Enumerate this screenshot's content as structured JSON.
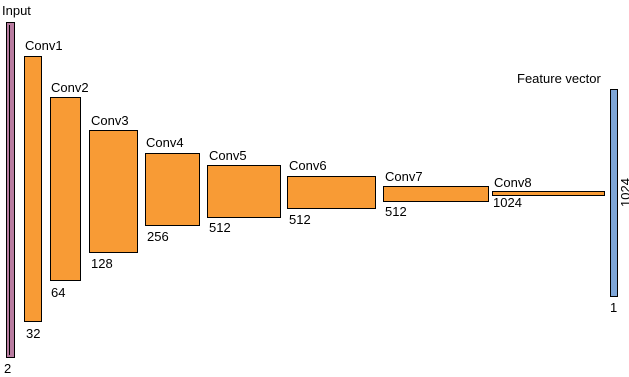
{
  "input": {
    "name": "Input",
    "dim": "2"
  },
  "layers": [
    {
      "name": "Conv1",
      "channels": "32"
    },
    {
      "name": "Conv2",
      "channels": "64"
    },
    {
      "name": "Conv3",
      "channels": "128"
    },
    {
      "name": "Conv4",
      "channels": "256"
    },
    {
      "name": "Conv5",
      "channels": "512"
    },
    {
      "name": "Conv6",
      "channels": "512"
    },
    {
      "name": "Conv7",
      "channels": "512"
    },
    {
      "name": "Conv8",
      "channels": "1024"
    }
  ],
  "output": {
    "name": "Feature vector",
    "dim": "1024",
    "depth": "1"
  },
  "colors": {
    "input": "#b87ca0",
    "conv": "#f89b35",
    "feature": "#7ea6d8"
  }
}
